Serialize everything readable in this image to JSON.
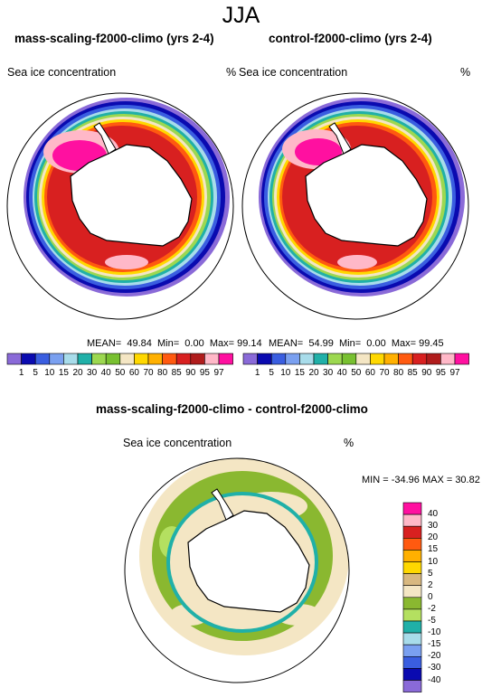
{
  "title": "JJA",
  "panel_left": {
    "title": "mass-scaling-f2000-climo (yrs 2-4)",
    "variable": "Sea ice concentration",
    "units": "%",
    "mean_label": "MEAN=",
    "mean": "49.84",
    "min_label": "Min=",
    "min": "0.00",
    "max_label": "Max=",
    "max": "99.14"
  },
  "panel_right": {
    "title": "control-f2000-climo (yrs 2-4)",
    "variable": "Sea ice concentration",
    "units": "%",
    "mean_label": "MEAN=",
    "mean": "54.99",
    "min_label": "Min=",
    "min": "0.00",
    "max_label": "Max=",
    "max": "99.45"
  },
  "panel_diff": {
    "title": "mass-scaling-f2000-climo - control-f2000-climo",
    "variable": "Sea ice concentration",
    "units": "%",
    "minmax": "MIN = -34.96 MAX =  30.82"
  },
  "colorbar_levels": [
    "1",
    "5",
    "10",
    "15",
    "20",
    "30",
    "40",
    "50",
    "60",
    "70",
    "80",
    "85",
    "90",
    "95",
    "97"
  ],
  "colorbar_colors": [
    "#8a6ad8",
    "#0a0ab0",
    "#3a5ee0",
    "#7aa0f0",
    "#a8dcea",
    "#20b0a8",
    "#9cd850",
    "#78c030",
    "#f4e6c4",
    "#ffd800",
    "#ffb000",
    "#ff5a10",
    "#d82020",
    "#b01c1c",
    "#ffb8c8",
    "#ff10a0"
  ],
  "diff_levels": [
    "40",
    "30",
    "20",
    "15",
    "10",
    "5",
    "2",
    "0",
    "-2",
    "-5",
    "-10",
    "-15",
    "-20",
    "-30",
    "-40"
  ],
  "diff_colors": [
    "#ff10a0",
    "#ffb8c8",
    "#d82020",
    "#ff5a10",
    "#ffb000",
    "#ffd800",
    "#d8b880",
    "#f4e6c4",
    "#8ab830",
    "#b4e060",
    "#20b0a8",
    "#a8dcea",
    "#7aa0f0",
    "#3a5ee0",
    "#0a0ab0",
    "#8a6ad8"
  ]
}
